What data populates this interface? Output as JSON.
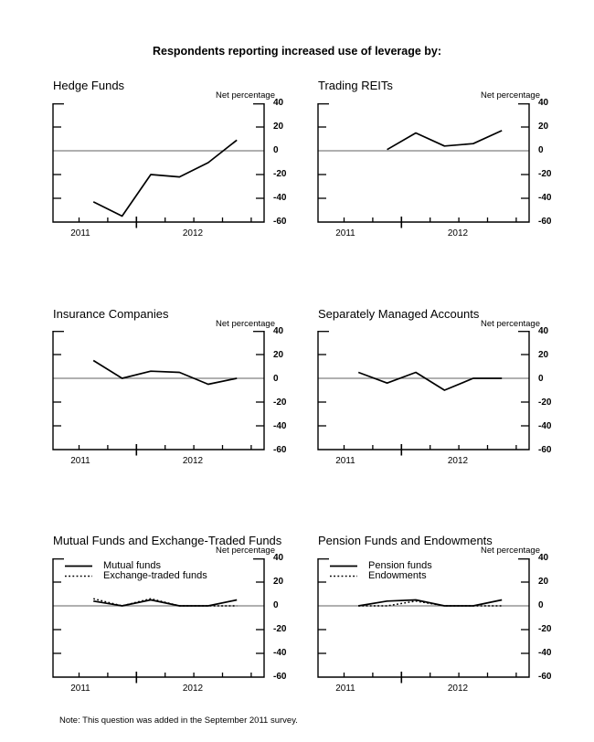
{
  "page": {
    "title": "Respondents reporting increased use of leverage by:",
    "note": "Note: This question was added in the September 2011 survey.",
    "background_color": "#ffffff",
    "line_color": "#000000",
    "zero_line_color": "#808080"
  },
  "axes": {
    "net_percentage_label": "Net percentage",
    "y_ticks": [
      "40",
      "20",
      "0",
      "-20",
      "-40",
      "-60"
    ],
    "x_year_labels": [
      "2011",
      "2012"
    ],
    "y_range": [
      -60,
      40
    ],
    "grid": "zero-line-only",
    "y_axis_side": "right"
  },
  "chart_data": [
    {
      "type": "line",
      "title": "Hedge Funds",
      "ylabel": "Net percentage",
      "ylim": [
        -60,
        40
      ],
      "x": [
        "2011 Q3",
        "2011 Q4",
        "2012 Q1",
        "2012 Q2",
        "2012 Q3",
        "2012 Q4"
      ],
      "series": [
        {
          "name": "Hedge funds",
          "line_style": "solid",
          "values": [
            -43,
            -55,
            -20,
            -22,
            -10,
            9
          ]
        }
      ],
      "show_legend": false
    },
    {
      "type": "line",
      "title": "Trading REITs",
      "ylabel": "Net percentage",
      "ylim": [
        -60,
        40
      ],
      "x": [
        "2011 Q3",
        "2011 Q4",
        "2012 Q1",
        "2012 Q2",
        "2012 Q3",
        "2012 Q4"
      ],
      "series": [
        {
          "name": "Trading REITs",
          "line_style": "solid",
          "values": [
            null,
            1,
            15,
            4,
            6,
            17
          ]
        }
      ],
      "show_legend": false
    },
    {
      "type": "line",
      "title": "Insurance Companies",
      "ylabel": "Net percentage",
      "ylim": [
        -60,
        40
      ],
      "x": [
        "2011 Q3",
        "2011 Q4",
        "2012 Q1",
        "2012 Q2",
        "2012 Q3",
        "2012 Q4"
      ],
      "series": [
        {
          "name": "Insurance companies",
          "line_style": "solid",
          "values": [
            15,
            0,
            6,
            5,
            -5,
            0
          ]
        }
      ],
      "show_legend": false
    },
    {
      "type": "line",
      "title": "Separately Managed Accounts",
      "ylabel": "Net percentage",
      "ylim": [
        -60,
        40
      ],
      "x": [
        "2011 Q3",
        "2011 Q4",
        "2012 Q1",
        "2012 Q2",
        "2012 Q3",
        "2012 Q4"
      ],
      "series": [
        {
          "name": "Separately managed accounts",
          "line_style": "solid",
          "values": [
            5,
            -4,
            5,
            -10,
            0,
            0
          ]
        }
      ],
      "show_legend": false
    },
    {
      "type": "line",
      "title": "Mutual Funds and Exchange-Traded Funds",
      "ylabel": "Net percentage",
      "ylim": [
        -60,
        40
      ],
      "x": [
        "2011 Q3",
        "2011 Q4",
        "2012 Q1",
        "2012 Q2",
        "2012 Q3",
        "2012 Q4"
      ],
      "series": [
        {
          "name": "Mutual funds",
          "line_style": "solid",
          "values": [
            4,
            0,
            5,
            0,
            0,
            5
          ]
        },
        {
          "name": "Exchange-traded funds",
          "line_style": "dotted",
          "values": [
            6,
            0,
            6,
            0,
            0,
            0
          ]
        }
      ],
      "show_legend": true
    },
    {
      "type": "line",
      "title": "Pension Funds and Endowments",
      "ylabel": "Net percentage",
      "ylim": [
        -60,
        40
      ],
      "x": [
        "2011 Q3",
        "2011 Q4",
        "2012 Q1",
        "2012 Q2",
        "2012 Q3",
        "2012 Q4"
      ],
      "series": [
        {
          "name": "Pension funds",
          "line_style": "solid",
          "values": [
            0,
            4,
            5,
            0,
            0,
            5
          ]
        },
        {
          "name": "Endowments",
          "line_style": "dotted",
          "values": [
            0,
            0,
            4,
            0,
            0,
            0
          ]
        }
      ],
      "show_legend": true
    }
  ]
}
